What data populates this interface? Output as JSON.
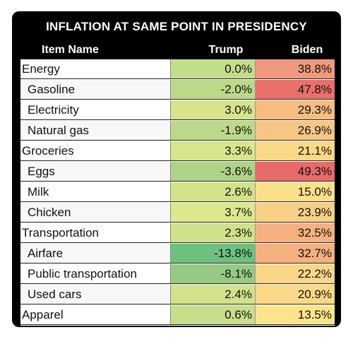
{
  "chart_data": {
    "type": "table",
    "title": "INFLATION AT SAME POINT IN PRESIDENCY",
    "columns": [
      "Item Name",
      "Trump",
      "Biden"
    ],
    "rows": [
      {
        "name": "Energy",
        "level": "category",
        "trump": "0.0%",
        "biden": "38.8%",
        "trump_value": 0.0,
        "biden_value": 38.8,
        "trump_color": "#c4dd8c",
        "biden_color": "#ef9a7d"
      },
      {
        "name": "Gasoline",
        "level": "sub",
        "trump": "-2.0%",
        "biden": "47.8%",
        "trump_value": -2.0,
        "biden_value": 47.8,
        "trump_color": "#bcd98a",
        "biden_color": "#e96f69"
      },
      {
        "name": "Electricity",
        "level": "sub",
        "trump": "3.0%",
        "biden": "29.3%",
        "trump_value": 3.0,
        "biden_value": 29.3,
        "trump_color": "#d7e48c",
        "biden_color": "#f6bc82"
      },
      {
        "name": "Natural gas",
        "level": "sub",
        "trump": "-1.9%",
        "biden": "26.9%",
        "trump_value": -1.9,
        "biden_value": 26.9,
        "trump_color": "#bcd98a",
        "biden_color": "#f7c684"
      },
      {
        "name": "Groceries",
        "level": "category",
        "trump": "3.3%",
        "biden": "21.1%",
        "trump_value": 3.3,
        "biden_value": 21.1,
        "trump_color": "#d9e58c",
        "biden_color": "#f9d888"
      },
      {
        "name": "Eggs",
        "level": "sub",
        "trump": "-3.6%",
        "biden": "49.3%",
        "trump_value": -3.6,
        "biden_value": 49.3,
        "trump_color": "#aed387",
        "biden_color": "#e86a68"
      },
      {
        "name": "Milk",
        "level": "sub",
        "trump": "2.6%",
        "biden": "15.0%",
        "trump_value": 2.6,
        "biden_value": 15.0,
        "trump_color": "#d3e38b",
        "biden_color": "#fbe08a"
      },
      {
        "name": "Chicken",
        "level": "sub",
        "trump": "3.7%",
        "biden": "23.9%",
        "trump_value": 3.7,
        "biden_value": 23.9,
        "trump_color": "#dde78d",
        "biden_color": "#f8cf86"
      },
      {
        "name": "Transportation",
        "level": "category",
        "trump": "2.3%",
        "biden": "32.5%",
        "trump_value": 2.3,
        "biden_value": 32.5,
        "trump_color": "#d0e18b",
        "biden_color": "#f4b17f"
      },
      {
        "name": "Airfare",
        "level": "sub",
        "trump": "-13.8%",
        "biden": "32.7%",
        "trump_value": -13.8,
        "biden_value": 32.7,
        "trump_color": "#6ec07f",
        "biden_color": "#f4b07f"
      },
      {
        "name": "Public transportation",
        "level": "sub",
        "trump": "-8.1%",
        "biden": "22.2%",
        "trump_value": -8.1,
        "biden_value": 22.2,
        "trump_color": "#96ca83",
        "biden_color": "#f9d587"
      },
      {
        "name": "Used cars",
        "level": "sub",
        "trump": "2.4%",
        "biden": "20.9%",
        "trump_value": 2.4,
        "biden_value": 20.9,
        "trump_color": "#d1e28b",
        "biden_color": "#f9d988"
      },
      {
        "name": "Apparel",
        "level": "category",
        "trump": "0.6%",
        "biden": "13.5%",
        "trump_value": 0.6,
        "biden_value": 13.5,
        "trump_color": "#c7de8b",
        "biden_color": "#fbe48b"
      }
    ]
  }
}
